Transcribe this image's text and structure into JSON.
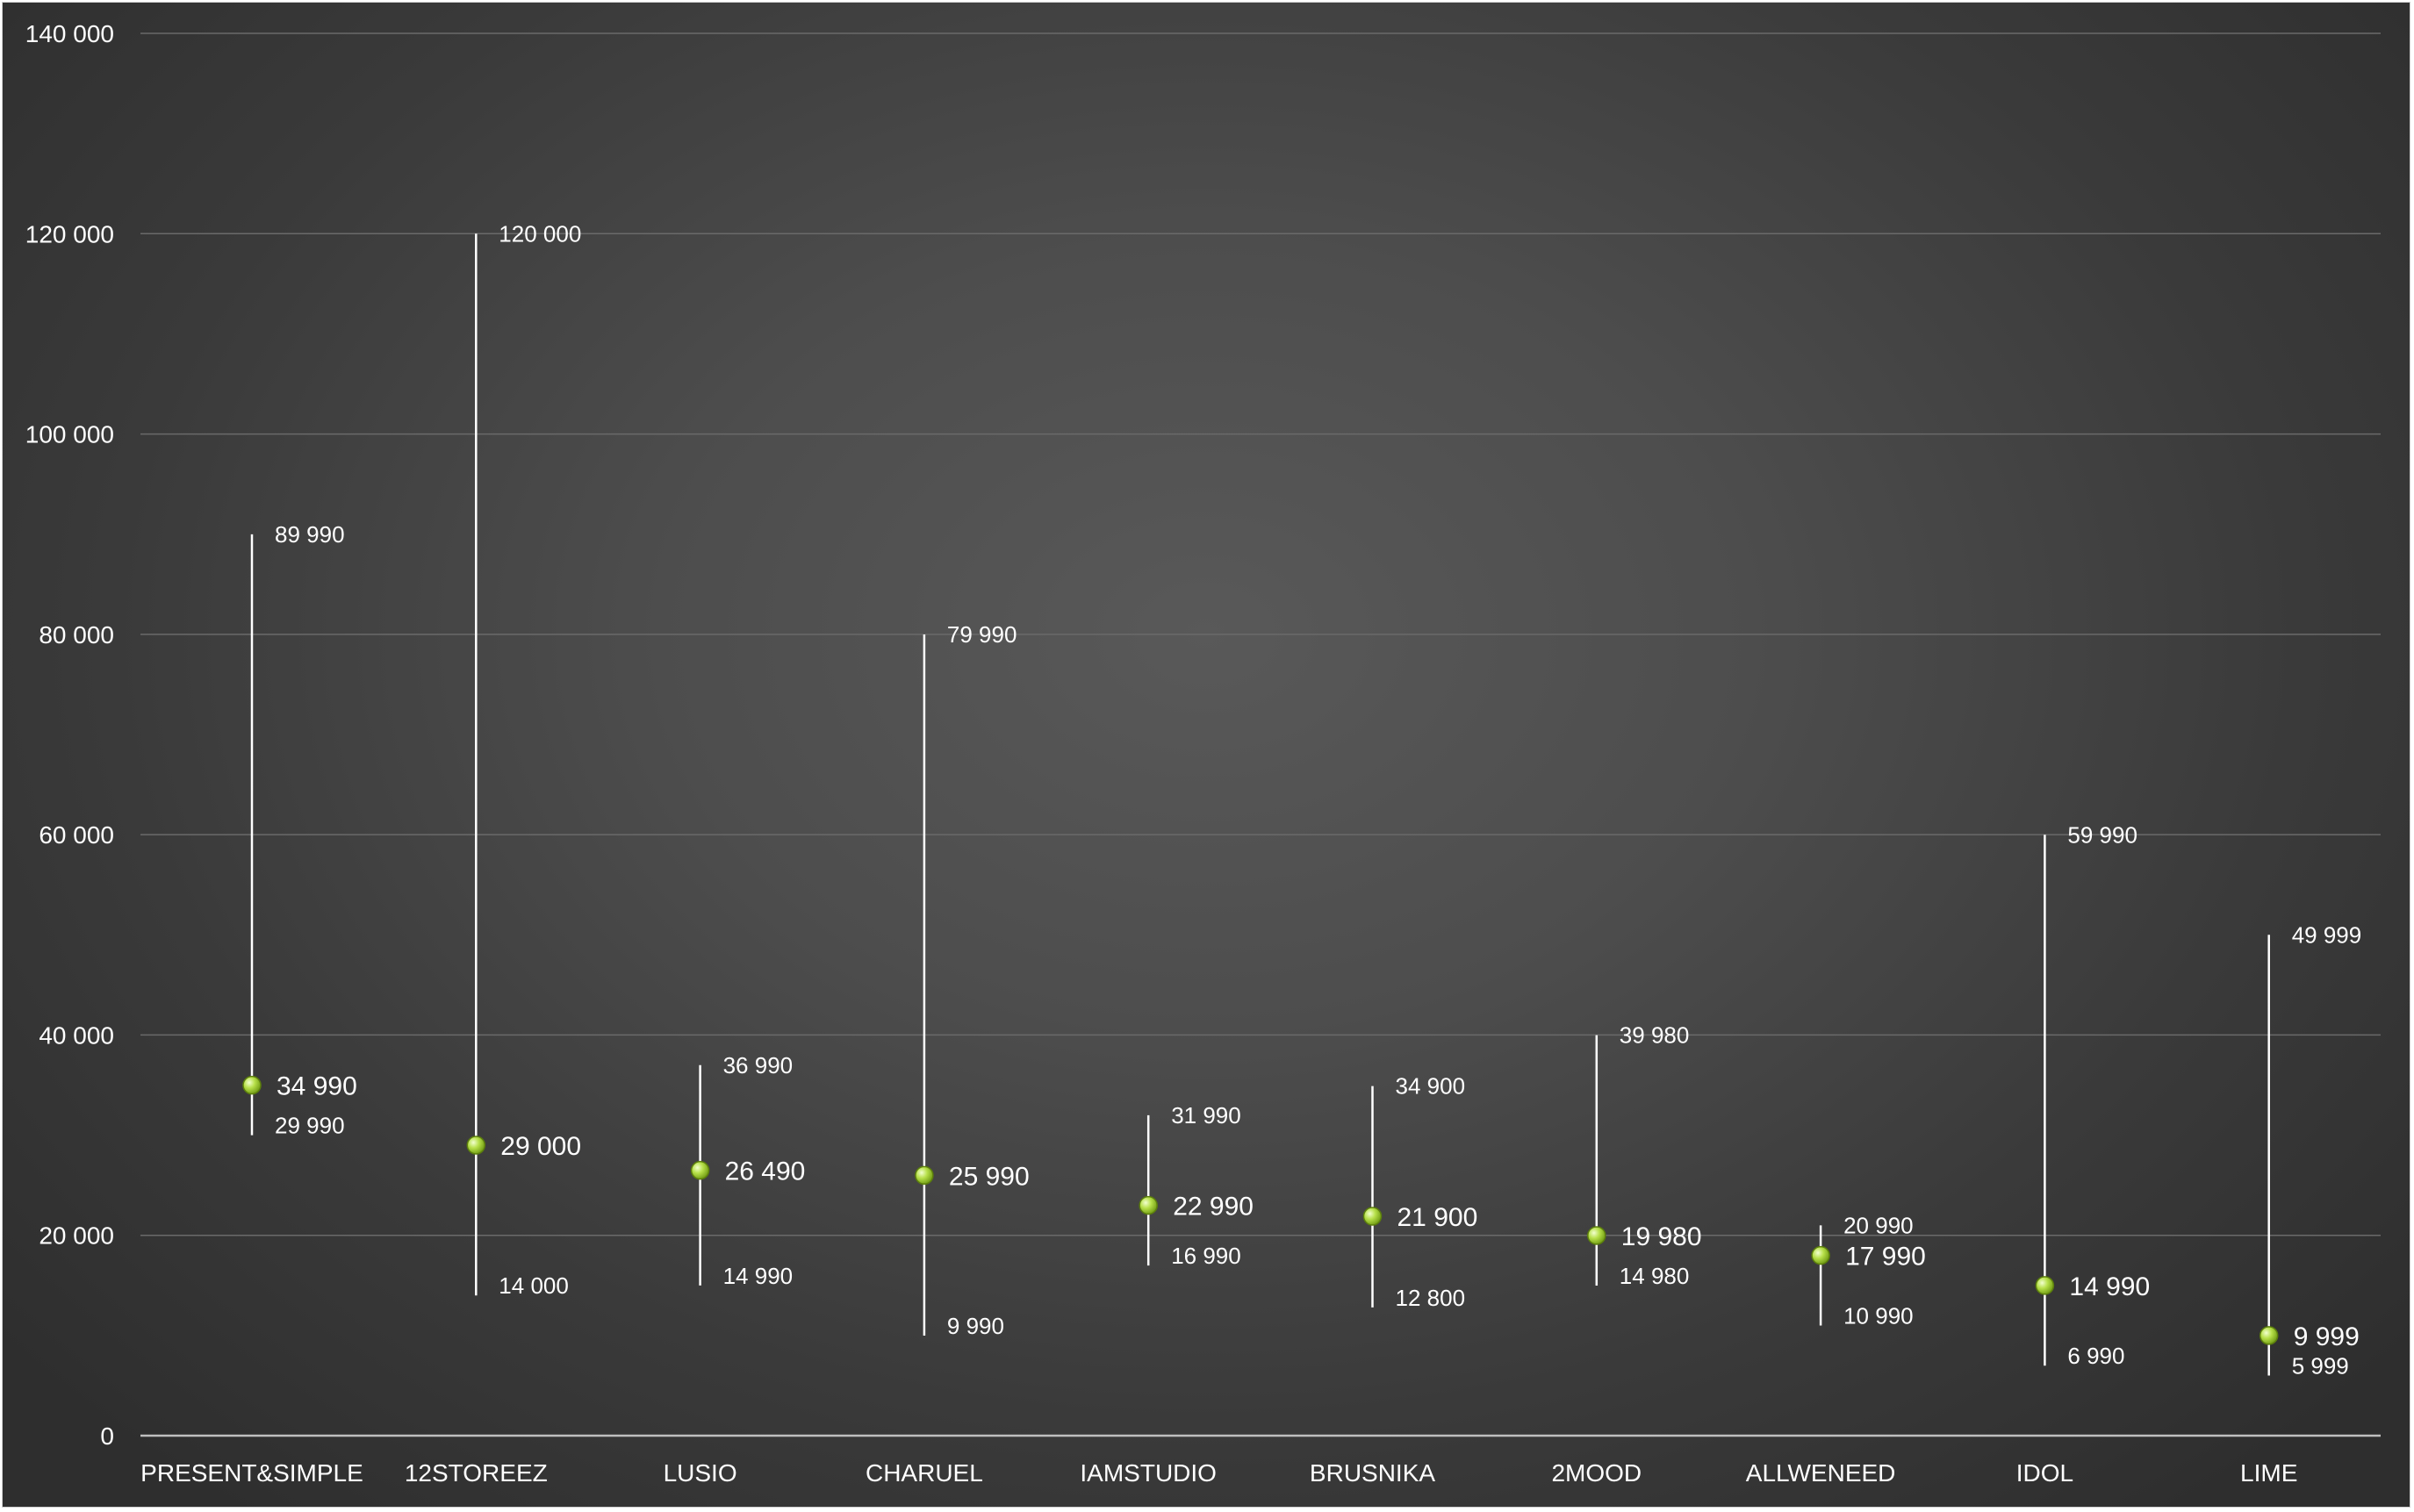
{
  "chart_data": {
    "type": "scatter",
    "subtype": "high-low-median",
    "title": "",
    "xlabel": "",
    "ylabel": "",
    "ylim": [
      0,
      140000
    ],
    "yticks": [
      0,
      20000,
      40000,
      60000,
      80000,
      100000,
      120000,
      140000
    ],
    "ytick_labels": [
      "0",
      "20 000",
      "40 000",
      "60 000",
      "80 000",
      "100 000",
      "120 000",
      "140 000"
    ],
    "grid": true,
    "legend": "none",
    "categories": [
      "PRESENT&SIMPLE",
      "12STOREEZ",
      "LUSIO",
      "CHARUEL",
      "IAMSTUDIO",
      "BRUSNIKA",
      "2MOOD",
      "ALLWENEED",
      "IDOL",
      "LIME"
    ],
    "series": [
      {
        "values": [
          89990,
          120000,
          36990,
          79990,
          31990,
          34900,
          39980,
          20990,
          59990,
          49999
        ]
      },
      {
        "values": [
          29990,
          14000,
          14990,
          9990,
          16990,
          12800,
          14980,
          10990,
          6990,
          5999
        ]
      },
      {
        "values": [
          34990,
          29000,
          26490,
          25990,
          22990,
          21900,
          19980,
          17990,
          14990,
          9999
        ]
      }
    ],
    "high_labels": [
      "89 990",
      "120 000",
      "36 990",
      "79 990",
      "31 990",
      "34 900",
      "39 980",
      "20 990",
      "59 990",
      "49 999"
    ],
    "low_labels": [
      "29 990",
      "14 000",
      "14 990",
      "9 990",
      "16 990",
      "12 800",
      "14 980",
      "10 990",
      "6 990",
      "5 999"
    ],
    "mid_labels": [
      "34 990",
      "29 000",
      "26 490",
      "25 990",
      "22 990",
      "21 900",
      "19 980",
      "17 990",
      "14 990",
      "9 999"
    ],
    "colors": {
      "background": "#4a4a4a",
      "marker": "#9acd32",
      "marker_highlight": "#e6f7b0",
      "range_line": "#ffffff",
      "text": "#ffffff"
    }
  }
}
